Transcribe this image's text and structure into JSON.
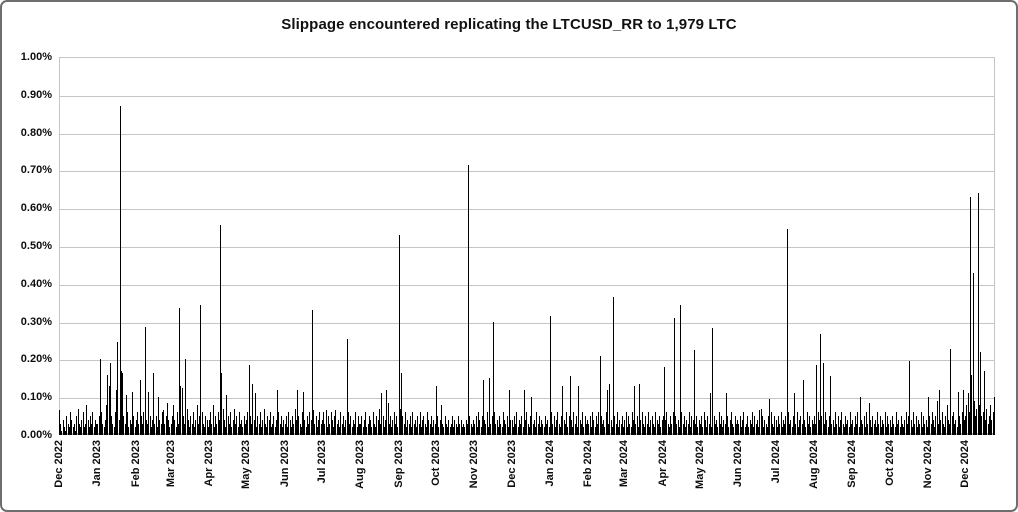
{
  "page": {
    "background": "#ffffff",
    "frame_border_color": "#6e6e6e"
  },
  "chart_data": {
    "type": "bar",
    "title": "Slippage encountered replicating the LTCUSD_RR to 1,979 LTC",
    "grid": true,
    "legend": "none",
    "bar_color": "#000000",
    "gridline_color": "#c5c5c5",
    "y_axis": {
      "min": 0.0,
      "max": 1.0,
      "step": 0.1,
      "format": "percent",
      "tick_labels": [
        "1.00%",
        "0.90%",
        "0.80%",
        "0.70%",
        "0.60%",
        "0.50%",
        "0.40%",
        "0.30%",
        "0.20%",
        "0.10%",
        "0.00%"
      ]
    },
    "x_axis": {
      "frequency": "daily",
      "total_days": 755,
      "tick_labels": [
        "Dec 2022",
        "Jan 2023",
        "Feb 2023",
        "Mar 2023",
        "Apr 2023",
        "May 2023",
        "Jun 2023",
        "Jul 2023",
        "Aug 2023",
        "Sep 2023",
        "Oct 2023",
        "Nov 2023",
        "Dec 2023",
        "Jan 2024",
        "Feb 2024",
        "Mar 2024",
        "Apr 2024",
        "May 2024",
        "Jun 2024",
        "Jul 2024",
        "Aug 2024",
        "Sep 2024",
        "Oct 2024",
        "Nov 2024",
        "Dec 2024"
      ],
      "tick_day_indices": [
        0,
        31,
        62,
        90,
        121,
        151,
        182,
        212,
        243,
        274,
        304,
        335,
        365,
        396,
        427,
        456,
        487,
        517,
        548,
        578,
        609,
        640,
        670,
        701,
        731
      ]
    },
    "values": [
      0.065,
      0.03,
      0.01,
      0.04,
      0.02,
      0.01,
      0.05,
      0.03,
      0.02,
      0.06,
      0.04,
      0.02,
      0.03,
      0.01,
      0.05,
      0.07,
      0.03,
      0.02,
      0.04,
      0.06,
      0.02,
      0.03,
      0.08,
      0.04,
      0.02,
      0.05,
      0.03,
      0.06,
      0.02,
      0.04,
      0.03,
      0.03,
      0.05,
      0.2,
      0.06,
      0.03,
      0.02,
      0.04,
      0.08,
      0.16,
      0.13,
      0.19,
      0.05,
      0.03,
      0.02,
      0.06,
      0.12,
      0.245,
      0.04,
      0.87,
      0.17,
      0.165,
      0.05,
      0.03,
      0.105,
      0.06,
      0.02,
      0.04,
      0.03,
      0.115,
      0.05,
      0.02,
      0.04,
      0.06,
      0.03,
      0.145,
      0.05,
      0.03,
      0.06,
      0.285,
      0.04,
      0.03,
      0.115,
      0.05,
      0.02,
      0.04,
      0.165,
      0.03,
      0.05,
      0.02,
      0.1,
      0.04,
      0.03,
      0.06,
      0.065,
      0.03,
      0.05,
      0.085,
      0.04,
      0.02,
      0.03,
      0.05,
      0.08,
      0.04,
      0.02,
      0.06,
      0.03,
      0.335,
      0.13,
      0.125,
      0.05,
      0.03,
      0.2,
      0.07,
      0.04,
      0.02,
      0.05,
      0.03,
      0.06,
      0.02,
      0.04,
      0.08,
      0.03,
      0.05,
      0.345,
      0.06,
      0.03,
      0.02,
      0.05,
      0.04,
      0.02,
      0.04,
      0.06,
      0.03,
      0.08,
      0.02,
      0.05,
      0.03,
      0.06,
      0.04,
      0.555,
      0.165,
      0.07,
      0.04,
      0.02,
      0.105,
      0.05,
      0.03,
      0.06,
      0.02,
      0.04,
      0.07,
      0.03,
      0.05,
      0.02,
      0.06,
      0.03,
      0.04,
      0.02,
      0.05,
      0.03,
      0.04,
      0.06,
      0.185,
      0.05,
      0.03,
      0.135,
      0.04,
      0.11,
      0.02,
      0.05,
      0.03,
      0.06,
      0.02,
      0.04,
      0.07,
      0.03,
      0.02,
      0.05,
      0.04,
      0.06,
      0.02,
      0.03,
      0.05,
      0.02,
      0.04,
      0.12,
      0.06,
      0.03,
      0.05,
      0.02,
      0.04,
      0.03,
      0.05,
      0.02,
      0.06,
      0.04,
      0.02,
      0.05,
      0.03,
      0.07,
      0.04,
      0.12,
      0.05,
      0.03,
      0.02,
      0.06,
      0.115,
      0.04,
      0.02,
      0.05,
      0.03,
      0.06,
      0.04,
      0.33,
      0.065,
      0.03,
      0.05,
      0.02,
      0.04,
      0.06,
      0.03,
      0.04,
      0.06,
      0.03,
      0.065,
      0.02,
      0.05,
      0.03,
      0.06,
      0.04,
      0.02,
      0.05,
      0.065,
      0.03,
      0.04,
      0.02,
      0.06,
      0.03,
      0.05,
      0.02,
      0.04,
      0.255,
      0.06,
      0.03,
      0.05,
      0.02,
      0.04,
      0.03,
      0.06,
      0.02,
      0.05,
      0.03,
      0.03,
      0.05,
      0.02,
      0.04,
      0.06,
      0.02,
      0.03,
      0.05,
      0.04,
      0.02,
      0.06,
      0.03,
      0.02,
      0.05,
      0.04,
      0.07,
      0.03,
      0.11,
      0.05,
      0.02,
      0.04,
      0.12,
      0.085,
      0.03,
      0.05,
      0.02,
      0.04,
      0.06,
      0.03,
      0.05,
      0.02,
      0.53,
      0.07,
      0.165,
      0.05,
      0.03,
      0.06,
      0.02,
      0.04,
      0.03,
      0.05,
      0.02,
      0.06,
      0.03,
      0.04,
      0.02,
      0.05,
      0.03,
      0.06,
      0.02,
      0.04,
      0.05,
      0.03,
      0.02,
      0.06,
      0.04,
      0.03,
      0.05,
      0.02,
      0.04,
      0.03,
      0.13,
      0.05,
      0.02,
      0.04,
      0.08,
      0.03,
      0.02,
      0.05,
      0.03,
      0.02,
      0.04,
      0.02,
      0.03,
      0.05,
      0.02,
      0.04,
      0.03,
      0.02,
      0.05,
      0.03,
      0.04,
      0.02,
      0.03,
      0.02,
      0.04,
      0.03,
      0.715,
      0.05,
      0.03,
      0.02,
      0.04,
      0.03,
      0.05,
      0.02,
      0.06,
      0.04,
      0.02,
      0.05,
      0.145,
      0.04,
      0.03,
      0.06,
      0.02,
      0.15,
      0.03,
      0.05,
      0.3,
      0.06,
      0.03,
      0.04,
      0.02,
      0.05,
      0.03,
      0.02,
      0.06,
      0.04,
      0.03,
      0.05,
      0.02,
      0.12,
      0.04,
      0.04,
      0.02,
      0.05,
      0.03,
      0.06,
      0.02,
      0.04,
      0.03,
      0.05,
      0.02,
      0.12,
      0.04,
      0.06,
      0.03,
      0.02,
      0.05,
      0.1,
      0.03,
      0.04,
      0.02,
      0.06,
      0.03,
      0.05,
      0.02,
      0.04,
      0.03,
      0.02,
      0.05,
      0.03,
      0.04,
      0.02,
      0.315,
      0.06,
      0.03,
      0.05,
      0.02,
      0.04,
      0.06,
      0.03,
      0.02,
      0.05,
      0.13,
      0.04,
      0.03,
      0.06,
      0.02,
      0.05,
      0.155,
      0.04,
      0.02,
      0.06,
      0.03,
      0.05,
      0.02,
      0.13,
      0.04,
      0.03,
      0.06,
      0.02,
      0.05,
      0.03,
      0.04,
      0.03,
      0.05,
      0.02,
      0.06,
      0.04,
      0.02,
      0.05,
      0.03,
      0.06,
      0.21,
      0.05,
      0.03,
      0.04,
      0.02,
      0.06,
      0.12,
      0.03,
      0.135,
      0.04,
      0.02,
      0.365,
      0.05,
      0.03,
      0.06,
      0.02,
      0.04,
      0.03,
      0.05,
      0.02,
      0.04,
      0.06,
      0.02,
      0.05,
      0.03,
      0.02,
      0.06,
      0.04,
      0.13,
      0.03,
      0.05,
      0.02,
      0.135,
      0.04,
      0.06,
      0.03,
      0.02,
      0.05,
      0.03,
      0.06,
      0.02,
      0.04,
      0.05,
      0.03,
      0.02,
      0.06,
      0.04,
      0.03,
      0.05,
      0.02,
      0.04,
      0.05,
      0.18,
      0.04,
      0.06,
      0.03,
      0.02,
      0.05,
      0.03,
      0.06,
      0.31,
      0.05,
      0.03,
      0.04,
      0.02,
      0.345,
      0.06,
      0.03,
      0.05,
      0.02,
      0.04,
      0.03,
      0.06,
      0.02,
      0.05,
      0.04,
      0.225,
      0.03,
      0.05,
      0.02,
      0.04,
      0.03,
      0.05,
      0.02,
      0.06,
      0.04,
      0.02,
      0.05,
      0.03,
      0.11,
      0.02,
      0.283,
      0.05,
      0.03,
      0.04,
      0.02,
      0.06,
      0.03,
      0.05,
      0.02,
      0.04,
      0.03,
      0.11,
      0.05,
      0.02,
      0.04,
      0.06,
      0.03,
      0.02,
      0.05,
      0.03,
      0.04,
      0.03,
      0.05,
      0.02,
      0.04,
      0.06,
      0.02,
      0.03,
      0.05,
      0.02,
      0.04,
      0.03,
      0.06,
      0.02,
      0.05,
      0.03,
      0.04,
      0.02,
      0.065,
      0.07,
      0.05,
      0.02,
      0.04,
      0.03,
      0.02,
      0.05,
      0.095,
      0.06,
      0.03,
      0.02,
      0.05,
      0.04,
      0.02,
      0.05,
      0.03,
      0.06,
      0.02,
      0.04,
      0.03,
      0.05,
      0.545,
      0.06,
      0.03,
      0.04,
      0.02,
      0.05,
      0.11,
      0.03,
      0.06,
      0.02,
      0.04,
      0.05,
      0.03,
      0.145,
      0.04,
      0.02,
      0.06,
      0.03,
      0.05,
      0.02,
      0.04,
      0.03,
      0.05,
      0.03,
      0.185,
      0.06,
      0.04,
      0.267,
      0.05,
      0.19,
      0.03,
      0.06,
      0.04,
      0.02,
      0.05,
      0.155,
      0.03,
      0.04,
      0.02,
      0.06,
      0.03,
      0.05,
      0.02,
      0.04,
      0.06,
      0.03,
      0.02,
      0.05,
      0.03,
      0.04,
      0.02,
      0.06,
      0.03,
      0.04,
      0.02,
      0.05,
      0.03,
      0.06,
      0.02,
      0.1,
      0.04,
      0.03,
      0.05,
      0.02,
      0.06,
      0.03,
      0.085,
      0.04,
      0.02,
      0.05,
      0.03,
      0.04,
      0.02,
      0.06,
      0.03,
      0.05,
      0.02,
      0.04,
      0.03,
      0.06,
      0.02,
      0.05,
      0.03,
      0.04,
      0.02,
      0.05,
      0.03,
      0.02,
      0.06,
      0.03,
      0.04,
      0.02,
      0.05,
      0.03,
      0.02,
      0.04,
      0.06,
      0.03,
      0.05,
      0.195,
      0.04,
      0.02,
      0.06,
      0.03,
      0.05,
      0.02,
      0.04,
      0.03,
      0.06,
      0.02,
      0.05,
      0.03,
      0.04,
      0.02,
      0.1,
      0.05,
      0.03,
      0.06,
      0.04,
      0.02,
      0.05,
      0.09,
      0.03,
      0.12,
      0.04,
      0.06,
      0.03,
      0.02,
      0.05,
      0.08,
      0.04,
      0.03,
      0.227,
      0.05,
      0.06,
      0.03,
      0.04,
      0.02,
      0.115,
      0.05,
      0.03,
      0.06,
      0.12,
      0.04,
      0.05,
      0.08,
      0.11,
      0.06,
      0.63,
      0.16,
      0.428,
      0.09,
      0.05,
      0.07,
      0.64,
      0.08,
      0.22,
      0.05,
      0.06,
      0.17,
      0.04,
      0.07,
      0.03,
      0.05,
      0.08,
      0.04,
      0.06,
      0.1
    ]
  }
}
